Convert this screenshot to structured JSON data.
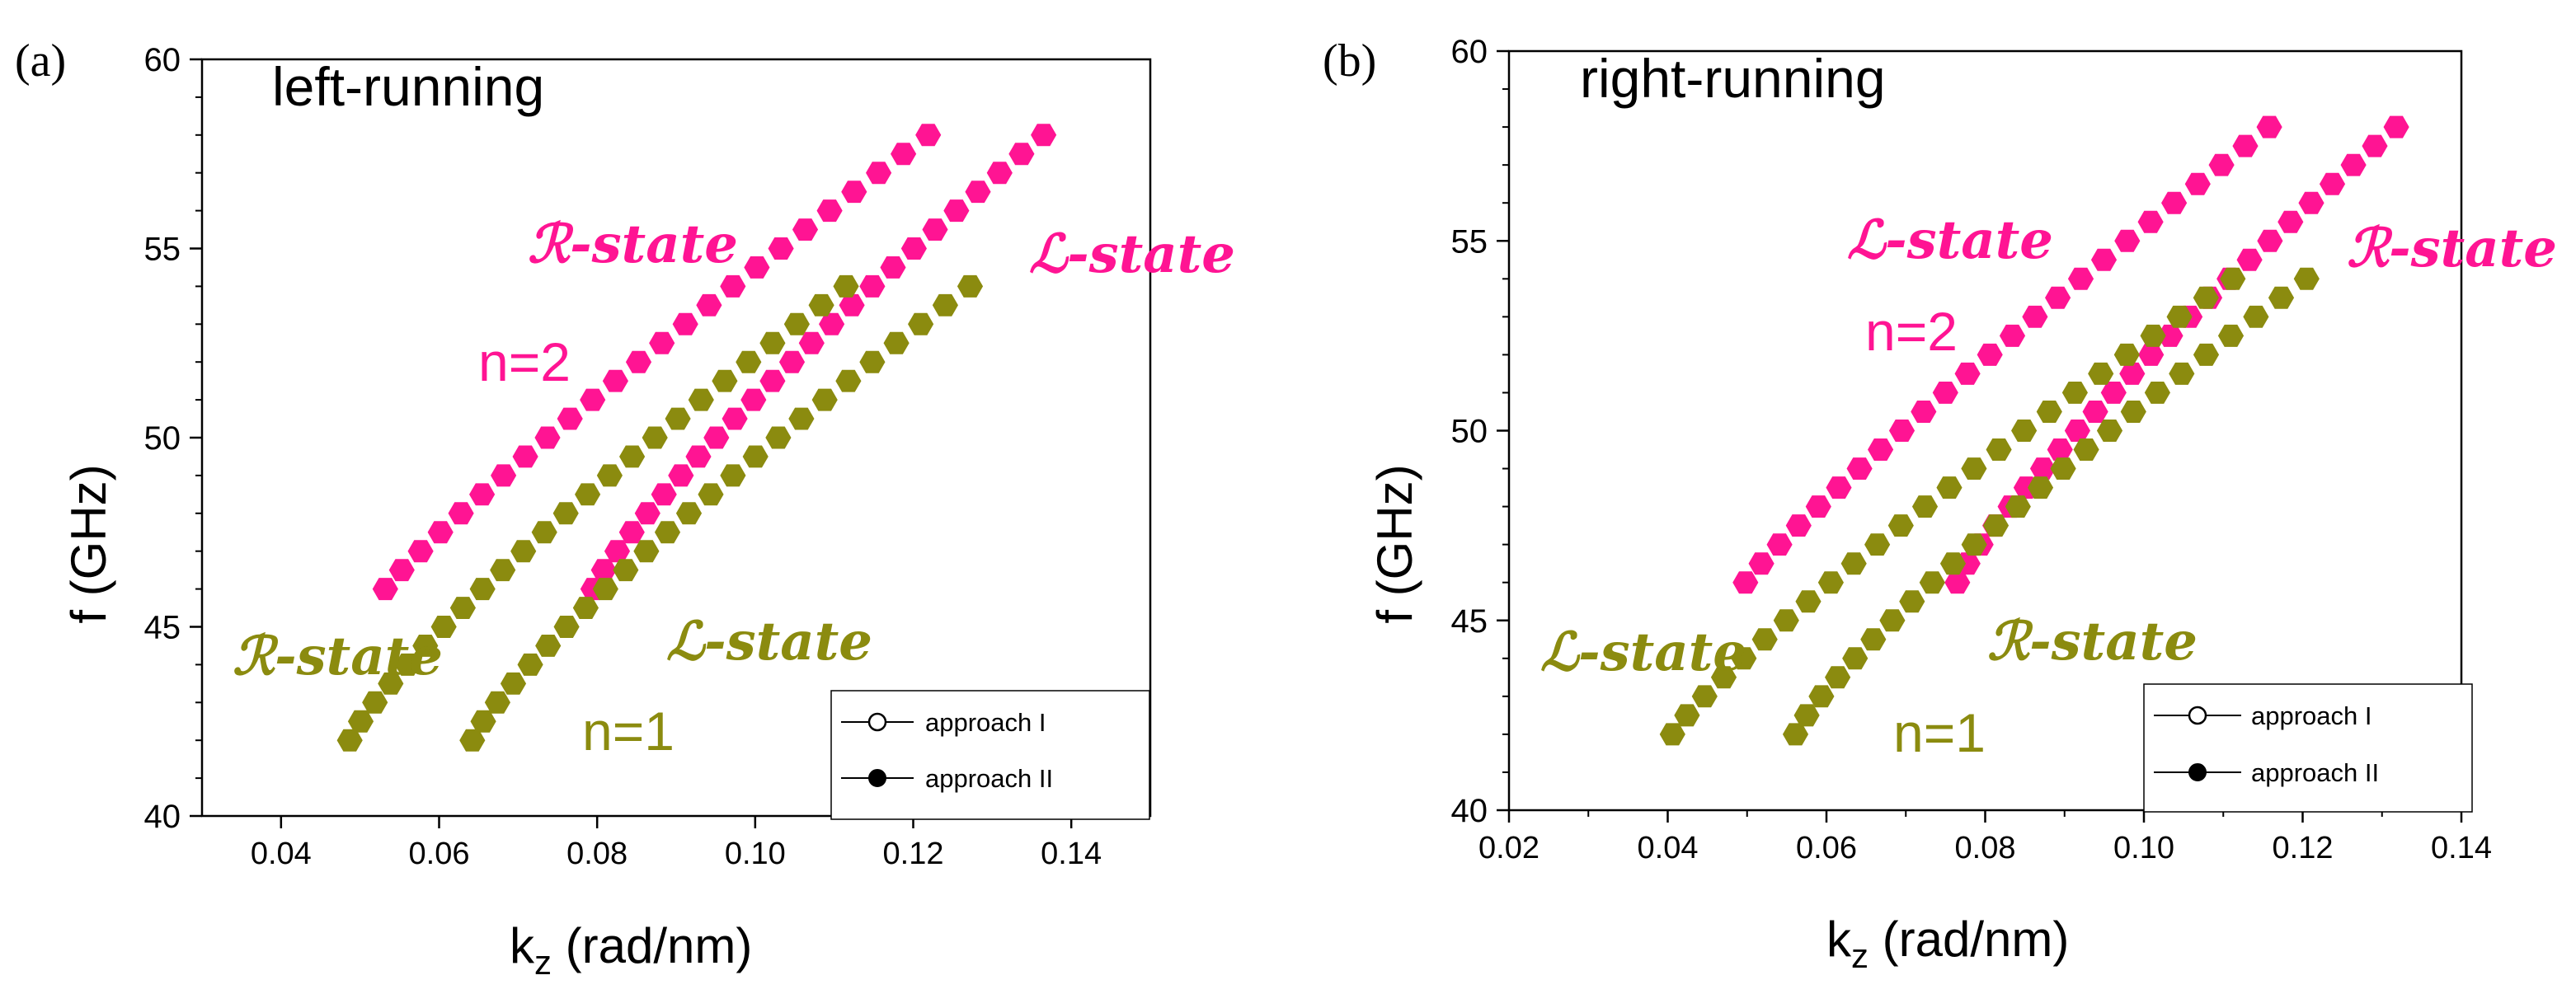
{
  "colors": {
    "pink": "#ff1493",
    "olive": "#8b8b0f",
    "axis": "#000000",
    "background": "#ffffff"
  },
  "chart_data": [
    {
      "type": "scatter",
      "panel_label": "(a)",
      "title": "left-running",
      "xlabel_main": "k",
      "xlabel_sub": "z",
      "xlabel_rest": " (rad/nm)",
      "ylabel": "f (GHz)",
      "xlim": [
        0.03,
        0.15
      ],
      "ylim": [
        40,
        60
      ],
      "xticks": [
        0.04,
        0.06,
        0.08,
        0.1,
        0.12,
        0.14
      ],
      "xtick_labels": [
        "0.04",
        "0.06",
        "0.08",
        "0.10",
        "0.12",
        "0.14"
      ],
      "yticks": [
        40,
        45,
        50,
        55,
        60
      ],
      "ytick_labels": [
        "40",
        "45",
        "50",
        "55",
        "60"
      ],
      "series": [
        {
          "name": "n=2 R-state",
          "color_key": "pink",
          "k0": 0.0532,
          "k1": 0.1219,
          "f0": 46,
          "f1": 58,
          "curve": 1.1,
          "n": 25
        },
        {
          "name": "n=2 L-state",
          "color_key": "pink",
          "k0": 0.0795,
          "k1": 0.1365,
          "f0": 46,
          "f1": 58,
          "curve": 1.18,
          "n": 25
        },
        {
          "name": "n=1 R-state",
          "color_key": "olive",
          "k0": 0.0487,
          "k1": 0.1115,
          "f0": 42,
          "f1": 54,
          "curve": 1.2,
          "n": 25
        },
        {
          "name": "n=1 L-state",
          "color_key": "olive",
          "k0": 0.0642,
          "k1": 0.1272,
          "f0": 42,
          "f1": 54,
          "curve": 1.2,
          "n": 25
        }
      ],
      "annotations": [
        {
          "text": "ℛ-state",
          "color_key": "pink"
        },
        {
          "text": "n=2",
          "color_key": "pink"
        },
        {
          "text": "ℒ-state",
          "color_key": "pink"
        },
        {
          "text": "ℛ-state",
          "color_key": "olive"
        },
        {
          "text": "ℒ-state",
          "color_key": "olive"
        },
        {
          "text": "n=1",
          "color_key": "olive"
        }
      ],
      "legend": {
        "placement": "bottom-right",
        "entries": [
          "approach I",
          "approach II"
        ]
      }
    },
    {
      "type": "scatter",
      "panel_label": "(b)",
      "title": "right-running",
      "xlabel_main": "k",
      "xlabel_sub": "z",
      "xlabel_rest": " (rad/nm)",
      "ylabel": "f (GHz)",
      "xlim": [
        0.02,
        0.14
      ],
      "ylim": [
        40,
        60
      ],
      "xticks": [
        0.02,
        0.04,
        0.06,
        0.08,
        0.1,
        0.12,
        0.14
      ],
      "xtick_labels": [
        "0.02",
        "0.04",
        "0.06",
        "0.08",
        "0.10",
        "0.12",
        "0.14"
      ],
      "yticks": [
        40,
        45,
        50,
        55,
        60
      ],
      "ytick_labels": [
        "40",
        "45",
        "50",
        "55",
        "60"
      ],
      "series": [
        {
          "name": "n=2 L-state",
          "color_key": "pink",
          "k0": 0.0498,
          "k1": 0.1158,
          "f0": 46,
          "f1": 58,
          "curve": 1.1,
          "n": 25
        },
        {
          "name": "n=2 R-state",
          "color_key": "pink",
          "k0": 0.0765,
          "k1": 0.1318,
          "f0": 46,
          "f1": 58,
          "curve": 1.18,
          "n": 25
        },
        {
          "name": "n=1 L-state",
          "color_key": "olive",
          "k0": 0.0406,
          "k1": 0.1112,
          "f0": 42,
          "f1": 54,
          "curve": 1.15,
          "n": 25
        },
        {
          "name": "n=1 R-state",
          "color_key": "olive",
          "k0": 0.0561,
          "k1": 0.1205,
          "f0": 42,
          "f1": 54,
          "curve": 1.2,
          "n": 25
        }
      ],
      "annotations": [
        {
          "text": "ℒ-state",
          "color_key": "pink"
        },
        {
          "text": "n=2",
          "color_key": "pink"
        },
        {
          "text": "ℛ-state",
          "color_key": "pink"
        },
        {
          "text": "ℒ-state",
          "color_key": "olive"
        },
        {
          "text": "ℛ-state",
          "color_key": "olive"
        },
        {
          "text": "n=1",
          "color_key": "olive"
        }
      ],
      "legend": {
        "placement": "bottom-right",
        "entries": [
          "approach I",
          "approach II"
        ]
      }
    }
  ]
}
